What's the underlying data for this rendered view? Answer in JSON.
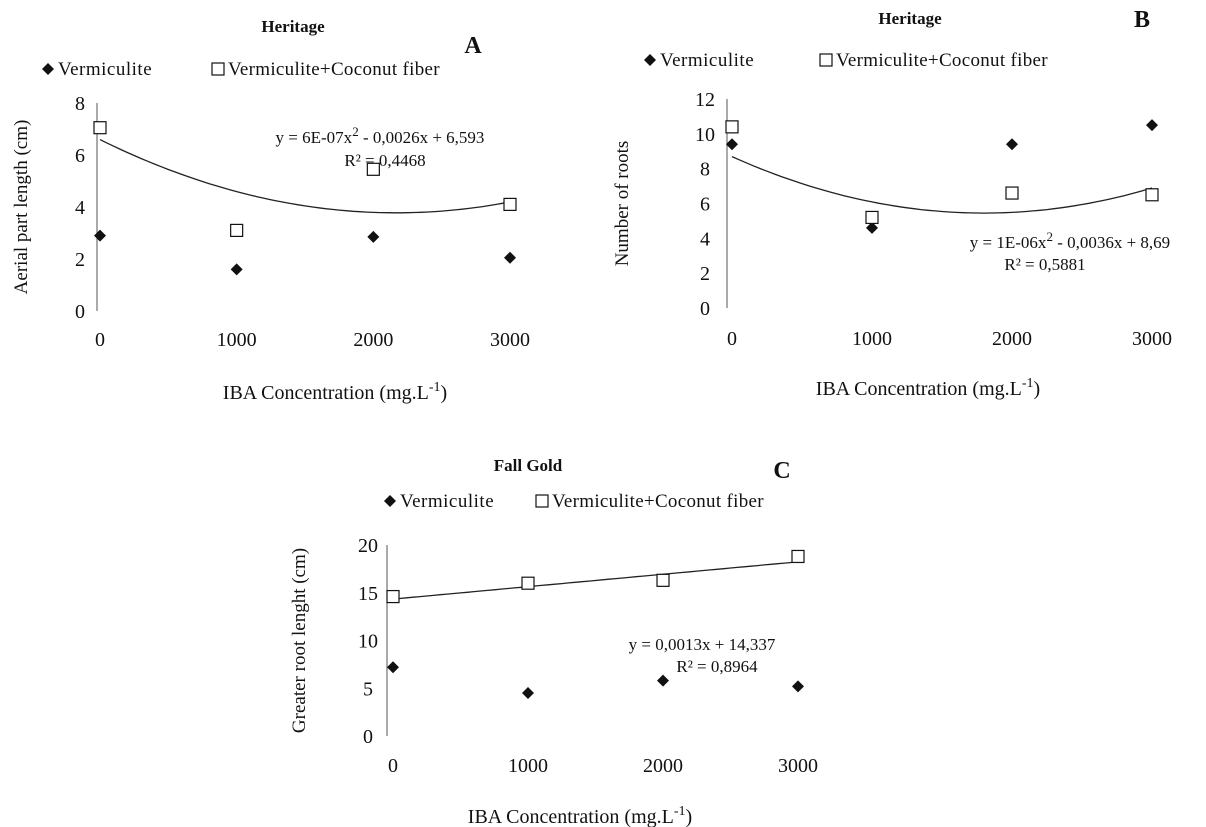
{
  "chart_data": [
    {
      "panel_letter": "A",
      "type": "scatter",
      "title": "Heritage",
      "ylabel": "Aerial part length (cm)",
      "xlabel": "IBA Concentration (mg.L",
      "xlabel_sup": "-1",
      "xlabel_close": ")",
      "xlim": [
        0,
        3000
      ],
      "ylim": [
        0,
        8
      ],
      "xticks": [
        0,
        1000,
        2000,
        3000
      ],
      "yticks": [
        0,
        2,
        4,
        6,
        8
      ],
      "legend_position": "top",
      "series": [
        {
          "name": "Vermiculite",
          "marker": "diamond-filled",
          "x": [
            0,
            1000,
            2000,
            3000
          ],
          "y": [
            2.9,
            1.6,
            2.85,
            2.05
          ]
        },
        {
          "name": "Vermiculite+Coconut fiber",
          "marker": "square-open",
          "x": [
            0,
            1000,
            2000,
            3000
          ],
          "y": [
            7.05,
            3.1,
            5.45,
            4.1
          ]
        }
      ],
      "trendline": {
        "type": "polynomial",
        "coef": [
          6e-07,
          -0.0026,
          6.593
        ]
      },
      "equation_pre": "y = 6E-07x",
      "equation_sup": "2",
      "equation_post": " - 0,0026x + 6,593",
      "r2": "R² = 0,4468"
    },
    {
      "panel_letter": "B",
      "type": "scatter",
      "title": "Heritage",
      "ylabel": "Number of roots",
      "xlabel": "IBA Concentration (mg.L",
      "xlabel_sup": "-1",
      "xlabel_close": ")",
      "xlim": [
        0,
        3000
      ],
      "ylim": [
        0,
        12
      ],
      "xticks": [
        0,
        1000,
        2000,
        3000
      ],
      "yticks": [
        0,
        2,
        4,
        6,
        8,
        10,
        12
      ],
      "legend_position": "top",
      "series": [
        {
          "name": "Vermiculite",
          "marker": "diamond-filled",
          "x": [
            0,
            1000,
            2000,
            3000
          ],
          "y": [
            9.4,
            4.6,
            9.4,
            10.5
          ]
        },
        {
          "name": "Vermiculite+Coconut fiber",
          "marker": "square-open",
          "x": [
            0,
            1000,
            2000,
            3000
          ],
          "y": [
            10.4,
            5.2,
            6.6,
            6.5
          ]
        }
      ],
      "trendline": {
        "type": "polynomial",
        "coef": [
          1e-06,
          -0.0036,
          8.69
        ]
      },
      "equation_pre": "y = 1E-06x",
      "equation_sup": "2",
      "equation_post": " - 0,0036x + 8,69",
      "r2": "R² = 0,5881"
    },
    {
      "panel_letter": "C",
      "type": "scatter",
      "title": "Fall Gold",
      "ylabel": "Greater root lenght (cm)",
      "xlabel": "IBA Concentration (mg.L",
      "xlabel_sup": "-1",
      "xlabel_close": ")",
      "xlim": [
        0,
        3000
      ],
      "ylim": [
        0,
        20
      ],
      "xticks": [
        0,
        1000,
        2000,
        3000
      ],
      "yticks": [
        0,
        5,
        10,
        15,
        20
      ],
      "legend_position": "top",
      "series": [
        {
          "name": "Vermiculite",
          "marker": "diamond-filled",
          "x": [
            0,
            1000,
            2000,
            3000
          ],
          "y": [
            7.2,
            4.5,
            5.8,
            5.2
          ]
        },
        {
          "name": "Vermiculite+Coconut fiber",
          "marker": "square-open",
          "x": [
            0,
            1000,
            2000,
            3000
          ],
          "y": [
            14.6,
            16.0,
            16.3,
            18.8
          ]
        }
      ],
      "trendline": {
        "type": "linear",
        "coef": [
          0,
          0.0013,
          14.337
        ]
      },
      "equation_pre": "y = 0,0013x + 14,337",
      "equation_sup": "",
      "equation_post": "",
      "r2": "R² = 0,8964"
    }
  ]
}
